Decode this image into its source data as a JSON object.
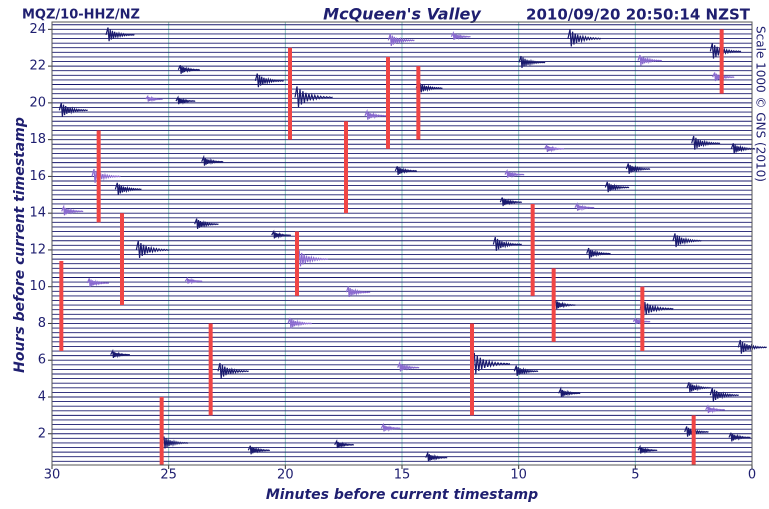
{
  "chart_data": {
    "type": "helicorder",
    "station": "MQZ/10-HHZ/NZ",
    "title": "McQueen's Valley",
    "timestamp": "2010/09/20 20:50:14 NZST",
    "scale_note": "Scale 1000 © GNS (2010)",
    "x_label": "Minutes before current timestamp",
    "y_label": "Hours before current timestamp",
    "xlim": [
      30,
      0
    ],
    "xticks": [
      30,
      25,
      20,
      15,
      10,
      5,
      0
    ],
    "ylim": [
      0.3,
      24.4
    ],
    "yticks": [
      2,
      4,
      6,
      8,
      10,
      12,
      14,
      16,
      18,
      20,
      22,
      24
    ],
    "grid": true,
    "trace_color": "#1a1a6e",
    "series": [
      {
        "color": "#1a1a6e",
        "x": [
          27.6,
          24.5,
          21.2,
          19.5,
          29.6,
          23.5,
          27.2,
          23.8,
          26.3,
          20.5,
          11,
          3.3,
          7,
          8.4,
          4.7,
          0.5,
          27.4,
          22.8,
          11.9,
          10.1,
          8.2,
          2.7,
          1.7,
          25.2,
          21.5,
          17.8,
          13.9,
          4.8,
          2.8,
          0.9,
          5.3,
          2.5,
          0.8,
          15.2,
          24.6,
          9.9,
          7.8,
          14.3,
          6.2,
          10.7,
          1.7
        ],
        "y": [
          23.7,
          21.8,
          21.2,
          20.3,
          19.6,
          16.8,
          15.3,
          13.4,
          12,
          12.8,
          12.3,
          12.5,
          11.8,
          9,
          8.8,
          6.7,
          6.3,
          5.4,
          5.8,
          5.4,
          4.2,
          4.5,
          4.1,
          1.5,
          1.1,
          1.4,
          0.7,
          1.1,
          2.1,
          1.8,
          16.4,
          17.8,
          17.5,
          16.3,
          20.1,
          22.2,
          23.5,
          20.8,
          15.4,
          14.6,
          22.8
        ],
        "amp": [
          0.8,
          0.5,
          0.8,
          1.2,
          0.8,
          0.5,
          0.7,
          0.6,
          1.0,
          0.4,
          0.8,
          0.8,
          0.6,
          0.5,
          1.0,
          0.8,
          0.4,
          0.9,
          1.2,
          0.6,
          0.5,
          0.6,
          0.8,
          0.7,
          0.5,
          0.4,
          0.5,
          0.4,
          0.6,
          0.5,
          0.6,
          0.8,
          0.6,
          0.5,
          0.4,
          0.7,
          1.0,
          0.7,
          0.6,
          0.5,
          0.9
        ]
      },
      {
        "color": "#8b6cd0",
        "x": [
          28.2,
          29.5,
          19.4,
          17.3,
          19.8,
          15.1,
          25.9,
          15.5,
          12.8,
          4.8,
          1.6,
          16.5,
          8.8,
          10.5,
          7.5,
          28.4,
          15.8,
          1.9,
          5,
          24.2
        ],
        "y": [
          16.0,
          14.1,
          11.5,
          9.7,
          8.0,
          5.6,
          20.2,
          23.4,
          23.6,
          22.3,
          21.4,
          19.3,
          17.5,
          16.1,
          14.3,
          10.2,
          2.3,
          3.3,
          8.1,
          10.3
        ],
        "amp": [
          0.8,
          0.5,
          0.9,
          0.6,
          0.6,
          0.5,
          0.3,
          0.7,
          0.4,
          0.6,
          0.5,
          0.5,
          0.4,
          0.4,
          0.4,
          0.5,
          0.4,
          0.4,
          0.3,
          0.3
        ]
      }
    ],
    "clipped": {
      "color": "#f04545",
      "x": [
        29.6,
        28,
        27,
        25.3,
        23.2,
        19.8,
        19.5,
        17.4,
        15.6,
        14.3,
        12,
        9.4,
        8.5,
        4.7,
        2.5,
        1.3
      ],
      "y_top": [
        11.4,
        18.5,
        14,
        4,
        8,
        23,
        13,
        19,
        22.5,
        22,
        8,
        14.5,
        11,
        10,
        3,
        24
      ],
      "y_bottom": [
        6.5,
        13.5,
        9,
        0.3,
        3,
        18,
        9.5,
        14,
        17.5,
        18,
        3,
        9.5,
        7,
        6.5,
        0.3,
        20.5
      ]
    }
  }
}
